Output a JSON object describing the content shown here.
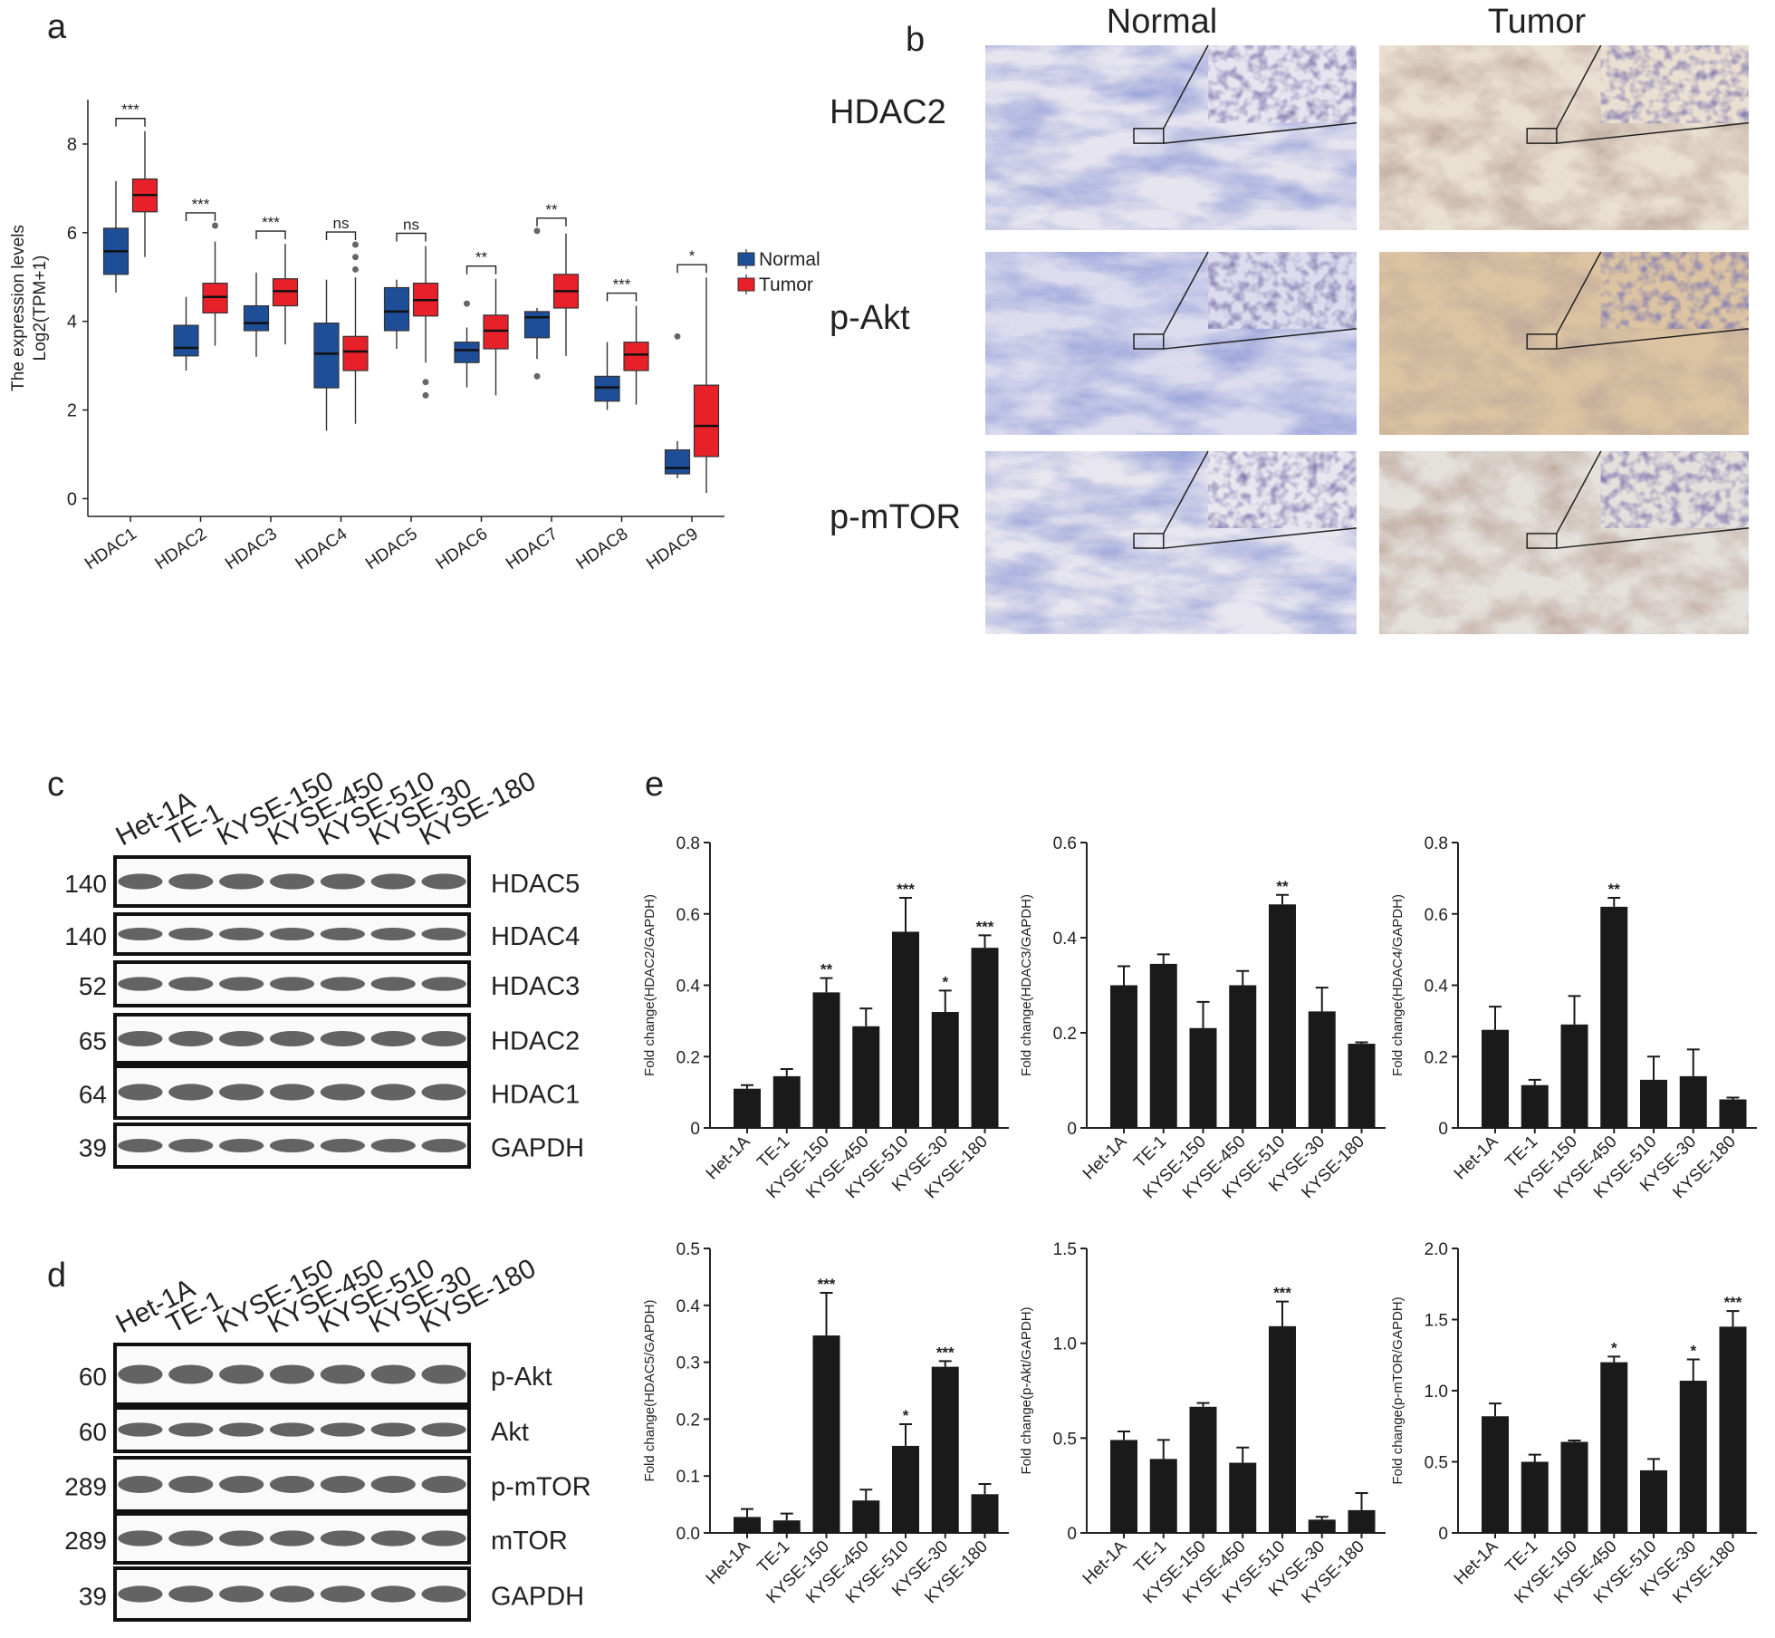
{
  "panels": [
    "a",
    "b",
    "c",
    "d",
    "e"
  ],
  "ihc": {
    "columns": [
      "Normal",
      "Tumor"
    ],
    "rows": [
      "HDAC2",
      "p-Akt",
      "p-mTOR"
    ]
  },
  "blots": [
    {
      "lanes": [
        "Het-1A",
        "TE-1",
        "KYSE-150",
        "KYSE-450",
        "KYSE-510",
        "KYSE-30",
        "KYSE-180"
      ],
      "rows": [
        {
          "marker": 140,
          "protein": "HDAC5"
        },
        {
          "marker": 140,
          "protein": "HDAC4"
        },
        {
          "marker": 52,
          "protein": "HDAC3"
        },
        {
          "marker": 65,
          "protein": "HDAC2"
        },
        {
          "marker": 64,
          "protein": "HDAC1"
        },
        {
          "marker": 39,
          "protein": "GAPDH"
        }
      ]
    },
    {
      "lanes": [
        "Het-1A",
        "TE-1",
        "KYSE-150",
        "KYSE-450",
        "KYSE-510",
        "KYSE-30",
        "KYSE-180"
      ],
      "rows": [
        {
          "marker": 60,
          "protein": "p-Akt"
        },
        {
          "marker": 60,
          "protein": "Akt"
        },
        {
          "marker": 289,
          "protein": "p-mTOR"
        },
        {
          "marker": 289,
          "protein": "mTOR"
        },
        {
          "marker": 39,
          "protein": "GAPDH"
        }
      ]
    }
  ],
  "chart_data": [
    {
      "type": "box",
      "ylabel": [
        "The expression levels",
        "Log2(TPM+1)"
      ],
      "categories": [
        "HDAC1",
        "HDAC2",
        "HDAC3",
        "HDAC4",
        "HDAC5",
        "HDAC6",
        "HDAC7",
        "HDAC8",
        "HDAC9"
      ],
      "annotations": [
        "***",
        "***",
        "***",
        "ns",
        "ns",
        "**",
        "**",
        "***",
        "*"
      ],
      "ylim": [
        -0.4,
        9
      ],
      "yticks": [
        0,
        2,
        4,
        6,
        8
      ],
      "series": [
        {
          "name": "Normal",
          "color": "#1f4e99",
          "values": [
            {
              "min": 4.65,
              "q1": 5.06,
              "median": 5.58,
              "q3": 6.1,
              "max": 7.16,
              "outliers": []
            },
            {
              "min": 2.89,
              "q1": 3.22,
              "median": 3.4,
              "q3": 3.91,
              "max": 4.55,
              "outliers": []
            },
            {
              "min": 3.2,
              "q1": 3.79,
              "median": 3.96,
              "q3": 4.35,
              "max": 5.1,
              "outliers": []
            },
            {
              "min": 1.53,
              "q1": 2.5,
              "median": 3.27,
              "q3": 3.96,
              "max": 4.94,
              "outliers": []
            },
            {
              "min": 3.38,
              "q1": 3.79,
              "median": 4.22,
              "q3": 4.76,
              "max": 4.94,
              "outliers": []
            },
            {
              "min": 2.51,
              "q1": 3.07,
              "median": 3.35,
              "q3": 3.53,
              "max": 3.86,
              "outliers": [
                4.4
              ]
            },
            {
              "min": 3.15,
              "q1": 3.63,
              "median": 4.09,
              "q3": 4.22,
              "max": 4.3,
              "outliers": [
                6.04,
                2.76
              ]
            },
            {
              "min": 2.0,
              "q1": 2.2,
              "median": 2.51,
              "q3": 2.76,
              "max": 3.53,
              "outliers": []
            },
            {
              "min": 0.46,
              "q1": 0.56,
              "median": 0.69,
              "q3": 1.1,
              "max": 1.3,
              "outliers": [
                3.66
              ]
            }
          ]
        },
        {
          "name": "Tumor",
          "color": "#e8202a",
          "values": [
            {
              "min": 5.45,
              "q1": 6.47,
              "median": 6.85,
              "q3": 7.21,
              "max": 8.29,
              "outliers": []
            },
            {
              "min": 3.45,
              "q1": 4.19,
              "median": 4.55,
              "q3": 4.86,
              "max": 5.8,
              "outliers": [
                6.16
              ]
            },
            {
              "min": 3.48,
              "q1": 4.35,
              "median": 4.68,
              "q3": 4.96,
              "max": 5.75,
              "outliers": []
            },
            {
              "min": 1.69,
              "q1": 2.89,
              "median": 3.32,
              "q3": 3.66,
              "max": 4.99,
              "outliers": [
                5.73,
                5.45,
                5.17
              ]
            },
            {
              "min": 3.07,
              "q1": 4.12,
              "median": 4.48,
              "q3": 4.86,
              "max": 5.7,
              "outliers": [
                2.63,
                2.33
              ]
            },
            {
              "min": 2.33,
              "q1": 3.38,
              "median": 3.79,
              "q3": 4.14,
              "max": 4.96,
              "outliers": []
            },
            {
              "min": 3.22,
              "q1": 4.3,
              "median": 4.68,
              "q3": 5.06,
              "max": 5.98,
              "outliers": []
            },
            {
              "min": 2.12,
              "q1": 2.89,
              "median": 3.25,
              "q3": 3.53,
              "max": 4.35,
              "outliers": []
            },
            {
              "min": 0.13,
              "q1": 0.95,
              "median": 1.64,
              "q3": 2.56,
              "max": 4.99,
              "outliers": []
            }
          ]
        }
      ]
    },
    {
      "type": "bar",
      "ylabel": "Fold change(HDAC2/GAPDH)",
      "color": "#1a1a1a",
      "categories": [
        "Het-1A",
        "TE-1",
        "KYSE-150",
        "KYSE-450",
        "KYSE-510",
        "KYSE-30",
        "KYSE-180"
      ],
      "values": [
        0.11,
        0.145,
        0.38,
        0.285,
        0.55,
        0.325,
        0.505
      ],
      "errors": [
        0.01,
        0.02,
        0.04,
        0.05,
        0.095,
        0.06,
        0.035
      ],
      "annotations": [
        null,
        null,
        "**",
        null,
        "***",
        "*",
        "***"
      ],
      "ylim": [
        0,
        0.8
      ],
      "yticks": [
        0,
        0.2,
        0.4,
        0.6,
        0.8
      ]
    },
    {
      "type": "bar",
      "ylabel": "Fold change(HDAC3/GAPDH)",
      "color": "#1a1a1a",
      "categories": [
        "Het-1A",
        "TE-1",
        "KYSE-150",
        "KYSE-450",
        "KYSE-510",
        "KYSE-30",
        "KYSE-180"
      ],
      "values": [
        0.3,
        0.345,
        0.21,
        0.3,
        0.47,
        0.245,
        0.177
      ],
      "errors": [
        0.04,
        0.02,
        0.055,
        0.03,
        0.02,
        0.05,
        0.003
      ],
      "annotations": [
        null,
        null,
        null,
        null,
        "**",
        null,
        null
      ],
      "ylim": [
        0,
        0.6
      ],
      "yticks": [
        0,
        0.2,
        0.4,
        0.6
      ]
    },
    {
      "type": "bar",
      "ylabel": "Fold change(HDAC4/GAPDH)",
      "color": "#1a1a1a",
      "categories": [
        "Het-1A",
        "TE-1",
        "KYSE-150",
        "KYSE-450",
        "KYSE-510",
        "KYSE-30",
        "KYSE-180"
      ],
      "values": [
        0.275,
        0.12,
        0.29,
        0.62,
        0.135,
        0.145,
        0.08
      ],
      "errors": [
        0.065,
        0.015,
        0.08,
        0.025,
        0.065,
        0.075,
        0.005
      ],
      "annotations": [
        null,
        null,
        null,
        "**",
        null,
        null,
        null
      ],
      "ylim": [
        0,
        0.8
      ],
      "yticks": [
        0,
        0.2,
        0.4,
        0.6,
        0.8
      ]
    },
    {
      "type": "bar",
      "ylabel": "Fold change(HDAC5/GAPDH)",
      "color": "#1a1a1a",
      "categories": [
        "Het-1A",
        "TE-1",
        "KYSE-150",
        "KYSE-450",
        "KYSE-510",
        "KYSE-30",
        "KYSE-180"
      ],
      "values": [
        0.028,
        0.022,
        0.347,
        0.057,
        0.153,
        0.292,
        0.068
      ],
      "errors": [
        0.014,
        0.012,
        0.075,
        0.019,
        0.038,
        0.01,
        0.018
      ],
      "annotations": [
        null,
        null,
        "***",
        null,
        "*",
        "***",
        null
      ],
      "ylim": [
        0,
        0.5
      ],
      "yticks": [
        {
          "value": 0,
          "label": "0.0"
        },
        0.1,
        0.2,
        0.3,
        0.4,
        0.5
      ]
    },
    {
      "type": "bar",
      "ylabel": "Fold change(p-Akt/GAPDH)",
      "color": "#1a1a1a",
      "categories": [
        "Het-1A",
        "TE-1",
        "KYSE-150",
        "KYSE-450",
        "KYSE-510",
        "KYSE-30",
        "KYSE-180"
      ],
      "values": [
        0.49,
        0.39,
        0.665,
        0.37,
        1.09,
        0.07,
        0.12
      ],
      "errors": [
        0.045,
        0.1,
        0.02,
        0.08,
        0.13,
        0.015,
        0.09
      ],
      "annotations": [
        null,
        null,
        null,
        null,
        "***",
        null,
        null
      ],
      "ylim": [
        0,
        1.5
      ],
      "yticks": [
        0,
        0.5,
        {
          "value": 1,
          "label": "1.0"
        },
        1.5
      ]
    },
    {
      "type": "bar",
      "ylabel": "Fold change(p-mTOR/GAPDH)",
      "color": "#1a1a1a",
      "categories": [
        "Het-1A",
        "TE-1",
        "KYSE-150",
        "KYSE-450",
        "KYSE-510",
        "KYSE-30",
        "KYSE-180"
      ],
      "values": [
        0.82,
        0.5,
        0.64,
        1.2,
        0.44,
        1.07,
        1.45
      ],
      "errors": [
        0.09,
        0.05,
        0.01,
        0.04,
        0.08,
        0.15,
        0.11
      ],
      "annotations": [
        null,
        null,
        null,
        "*",
        null,
        "*",
        "***"
      ],
      "ylim": [
        0,
        2
      ],
      "yticks": [
        0,
        0.5,
        {
          "value": 1,
          "label": "1.0"
        },
        1.5,
        {
          "value": 2,
          "label": "2.0"
        }
      ]
    }
  ]
}
